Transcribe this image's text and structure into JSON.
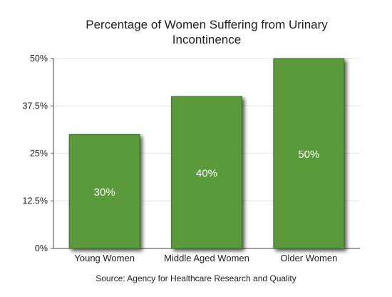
{
  "chart_data": {
    "type": "bar",
    "title_lines": [
      "Percentage of Women Suffering from Urinary",
      "Incontinence"
    ],
    "categories": [
      "Young Women",
      "Middle Aged Women",
      "Older Women"
    ],
    "values": [
      30,
      40,
      50
    ],
    "value_labels": [
      "30%",
      "40%",
      "50%"
    ],
    "y_ticks": [
      "0%",
      "12.5%",
      "25%",
      "37.5%",
      "50%"
    ],
    "ylim": [
      0,
      50
    ],
    "grid": true,
    "colors": {
      "bar": "#5a9a3a",
      "bar_stroke": "#3d6e24",
      "grid": "#e4e4e4",
      "text": "#222222"
    },
    "source": "Source: Agency for Healthcare Research and Quality"
  }
}
